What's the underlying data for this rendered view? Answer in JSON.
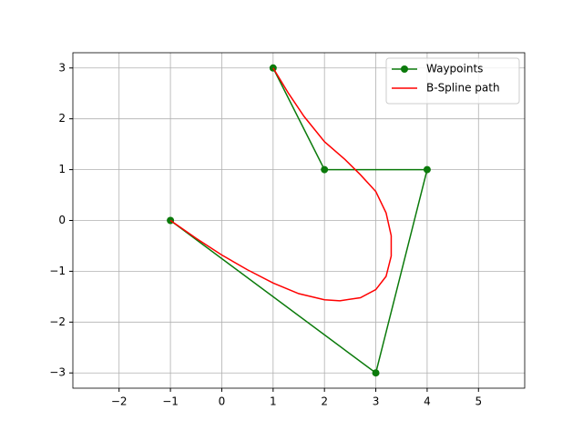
{
  "chart_data": {
    "type": "line",
    "series": [
      {
        "name": "Waypoints",
        "color": "#0b7a0b",
        "marker": true,
        "x": [
          -1,
          3,
          4,
          2,
          1
        ],
        "values": [
          0,
          -3,
          1,
          1,
          3
        ]
      },
      {
        "name": "B-Spline path",
        "color": "#ff0000",
        "marker": false,
        "x": [
          -1,
          -0.5,
          0,
          0.5,
          1,
          1.5,
          2,
          2.3,
          2.7,
          3,
          3.2,
          3.3,
          3.3,
          3.2,
          3,
          2.7,
          2.4,
          2,
          1.6,
          1.3,
          1
        ],
        "values": [
          0,
          -0.35,
          -0.68,
          -0.97,
          -1.23,
          -1.44,
          -1.56,
          -1.58,
          -1.52,
          -1.36,
          -1.1,
          -0.7,
          -0.3,
          0.15,
          0.57,
          0.9,
          1.2,
          1.55,
          2.05,
          2.5,
          3
        ]
      }
    ],
    "xlim": [
      -2.9,
      5.9
    ],
    "ylim": [
      -3.3,
      3.3
    ],
    "xticks": [
      {
        "value": -2,
        "label": "−2"
      },
      {
        "value": -1,
        "label": "−1"
      },
      0,
      1,
      2,
      3,
      4,
      5
    ],
    "yticks": [
      {
        "value": -3,
        "label": "−3"
      },
      {
        "value": -2,
        "label": "−2"
      },
      {
        "value": -1,
        "label": "−1"
      },
      0,
      1,
      2,
      3
    ],
    "grid": true,
    "legend": "upper right"
  }
}
